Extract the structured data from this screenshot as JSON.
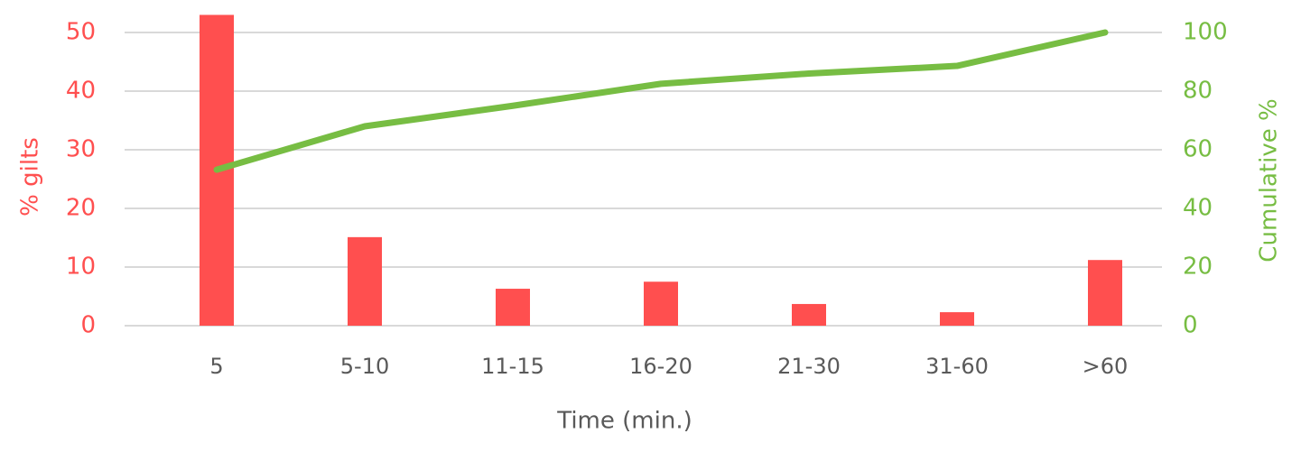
{
  "chart_data": {
    "type": "combo",
    "xlabel": "Time (min.)",
    "ylabel": "% gilts",
    "y2label": "Cumulative %",
    "categories": [
      "5",
      "5-10",
      "11-15",
      "16-20",
      "21-30",
      "31-60",
      ">60"
    ],
    "series": [
      {
        "type": "bar",
        "color": "#ff4f4f",
        "values": [
          53,
          15.1,
          6.3,
          7.5,
          3.7,
          2.3,
          11.2
        ]
      },
      {
        "type": "line",
        "axis": "y2",
        "color": "#77bd43",
        "values": [
          53.2,
          68,
          75,
          82.5,
          86,
          88.6,
          100
        ]
      }
    ],
    "ylim": [
      0,
      53
    ],
    "yticks": [
      0,
      10,
      20,
      30,
      40,
      50
    ],
    "y2lim": [
      0,
      106
    ],
    "y2ticks": [
      0,
      20,
      40,
      60,
      80,
      100
    ],
    "grid": true
  }
}
